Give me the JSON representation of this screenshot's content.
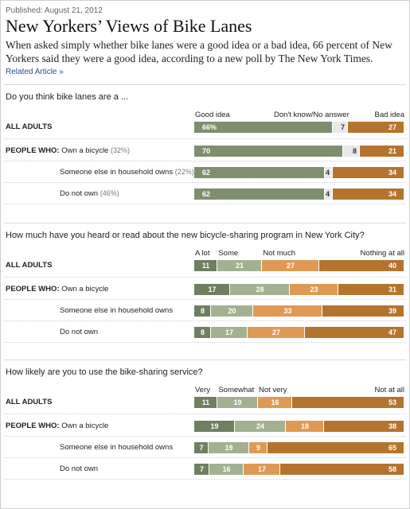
{
  "header": {
    "published": "Published: August 21, 2012",
    "title": "New Yorkers’ Views of Bike Lanes",
    "lead": "When asked simply whether bike lanes were a good idea or a bad idea, 66 percent of New Yorkers said they were a good idea, according to a new poll by The New York Times.",
    "related_link": "Related Article »"
  },
  "chart_data": [
    {
      "type": "bar",
      "stacked": true,
      "question": "Do you think bike lanes are a ...",
      "categories": [
        "ALL ADULTS",
        "Own a bicycle",
        "Someone else in household owns",
        "Do not own"
      ],
      "category_notes": [
        "",
        "(32%)",
        "(22%)",
        "(46%)"
      ],
      "group_prefix": "PEOPLE WHO:",
      "series": [
        {
          "name": "Good idea",
          "values": [
            66,
            70,
            62,
            62
          ],
          "labels": [
            "66%",
            "70",
            "62",
            "62"
          ],
          "color": "#7f8f6e",
          "text_color": "#ffffff"
        },
        {
          "name": "Don't know/No answer",
          "values": [
            7,
            8,
            4,
            4
          ],
          "labels": [
            "7",
            "8",
            "4",
            "4"
          ],
          "color": "#e9e9e9",
          "text_color": "#333333"
        },
        {
          "name": "Bad idea",
          "values": [
            27,
            21,
            34,
            34
          ],
          "labels": [
            "27",
            "21",
            "34",
            "34"
          ],
          "color": "#b4742e",
          "text_color": "#ffffff"
        }
      ]
    },
    {
      "type": "bar",
      "stacked": true,
      "question": "How much have you heard or read about the new bicycle-sharing program in New York City?",
      "categories": [
        "ALL ADULTS",
        "Own a bicycle",
        "Someone else in household owns",
        "Do not own"
      ],
      "category_notes": [
        "",
        "",
        "",
        ""
      ],
      "group_prefix": "PEOPLE WHO:",
      "series": [
        {
          "name": "A lot",
          "values": [
            11,
            17,
            8,
            8
          ],
          "labels": [
            "11",
            "17",
            "8",
            "8"
          ],
          "color": "#6f7f5f",
          "text_color": "#ffffff"
        },
        {
          "name": "Some",
          "values": [
            21,
            28,
            20,
            17
          ],
          "labels": [
            "21",
            "28",
            "20",
            "17"
          ],
          "color": "#a3b190",
          "text_color": "#ffffff"
        },
        {
          "name": "Not much",
          "values": [
            27,
            23,
            33,
            27
          ],
          "labels": [
            "27",
            "23",
            "33",
            "27"
          ],
          "color": "#de9a55",
          "text_color": "#ffffff"
        },
        {
          "name": "Nothing at all",
          "values": [
            40,
            31,
            39,
            47
          ],
          "labels": [
            "40",
            "31",
            "39",
            "47"
          ],
          "color": "#b4742e",
          "text_color": "#ffffff"
        }
      ]
    },
    {
      "type": "bar",
      "stacked": true,
      "question": "How likely are you to use the bike-sharing service?",
      "categories": [
        "ALL ADULTS",
        "Own a bicycle",
        "Someone else in household owns",
        "Do not own"
      ],
      "category_notes": [
        "",
        "",
        "",
        ""
      ],
      "group_prefix": "PEOPLE WHO:",
      "series": [
        {
          "name": "Very",
          "values": [
            11,
            19,
            7,
            7
          ],
          "labels": [
            "11",
            "19",
            "7",
            "7"
          ],
          "color": "#6f7f5f",
          "text_color": "#ffffff"
        },
        {
          "name": "Somewhat",
          "values": [
            19,
            24,
            19,
            16
          ],
          "labels": [
            "19",
            "24",
            "19",
            "16"
          ],
          "color": "#a3b190",
          "text_color": "#ffffff"
        },
        {
          "name": "Not very",
          "values": [
            16,
            18,
            9,
            17
          ],
          "labels": [
            "16",
            "18",
            "9",
            "17"
          ],
          "color": "#de9a55",
          "text_color": "#ffffff"
        },
        {
          "name": "Not at all",
          "values": [
            53,
            38,
            65,
            58
          ],
          "labels": [
            "53",
            "38",
            "65",
            "58"
          ],
          "color": "#b4742e",
          "text_color": "#ffffff"
        }
      ]
    }
  ]
}
